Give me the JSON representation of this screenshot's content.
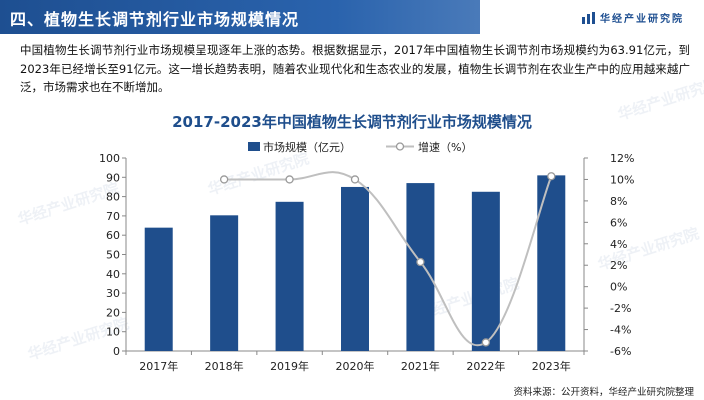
{
  "header": {
    "title": "四、植物生长调节剂行业市场规模情况",
    "brand": "华经产业研究院",
    "brand_icon": "bars-logo-icon"
  },
  "paragraph": "中国植物生长调节剂行业市场规模呈现逐年上涨的态势。根据数据显示，2017年中国植物生长调节剂市场规模约为63.91亿元，到2023年已经增长至91亿元。这一增长趋势表明，随着农业现代化和生态农业的发展，植物生长调节剂在农业生产中的应用越来越广泛，市场需求也在不断增加。",
  "source": "资料来源：公开资料，华经产业研究院整理",
  "watermark": "华经产业研究院",
  "chart_data": {
    "type": "bar",
    "title": "2017-2023年中国植物生长调节剂行业市场规模情况",
    "categories": [
      "2017年",
      "2018年",
      "2019年",
      "2020年",
      "2021年",
      "2022年",
      "2023年"
    ],
    "series": [
      {
        "name": "市场规模（亿元）",
        "type": "bar",
        "axis": "left",
        "color": "#1f4e8c",
        "values": [
          63.91,
          70.3,
          77.3,
          85.0,
          87.0,
          82.5,
          91.0
        ]
      },
      {
        "name": "增速（%）",
        "type": "line",
        "axis": "right",
        "color": "#bfbfbf",
        "values": [
          null,
          10.0,
          10.0,
          10.0,
          2.3,
          -5.2,
          10.3
        ]
      }
    ],
    "left_axis": {
      "min": 0,
      "max": 100,
      "step": 10,
      "ticks": [
        "0",
        "10",
        "20",
        "30",
        "40",
        "50",
        "60",
        "70",
        "80",
        "90",
        "100"
      ]
    },
    "right_axis": {
      "min": -6,
      "max": 12,
      "step": 2,
      "ticks": [
        "-6%",
        "-4%",
        "-2%",
        "0%",
        "2%",
        "4%",
        "6%",
        "8%",
        "10%",
        "12%"
      ]
    },
    "legend_position": "top-center",
    "grid": false
  }
}
